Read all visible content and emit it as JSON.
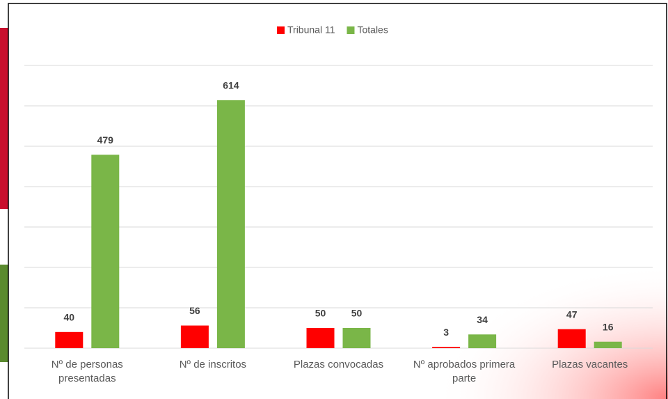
{
  "chart_data": {
    "type": "bar",
    "categories": [
      "Nº de personas presentadas",
      "Nº de inscritos",
      "Plazas convocadas",
      "Nº aprobados primera parte",
      "Plazas vacantes"
    ],
    "series": [
      {
        "name": "Tribunal 11",
        "color": "#ff0000",
        "values": [
          40,
          56,
          50,
          3,
          47
        ]
      },
      {
        "name": "Totales",
        "color": "#7ab648",
        "values": [
          479,
          614,
          50,
          34,
          16
        ]
      }
    ],
    "ylim": [
      0,
      700
    ],
    "yticks": [
      0,
      100,
      200,
      300,
      400,
      500,
      600,
      700
    ],
    "grid": true,
    "legend": "top"
  }
}
